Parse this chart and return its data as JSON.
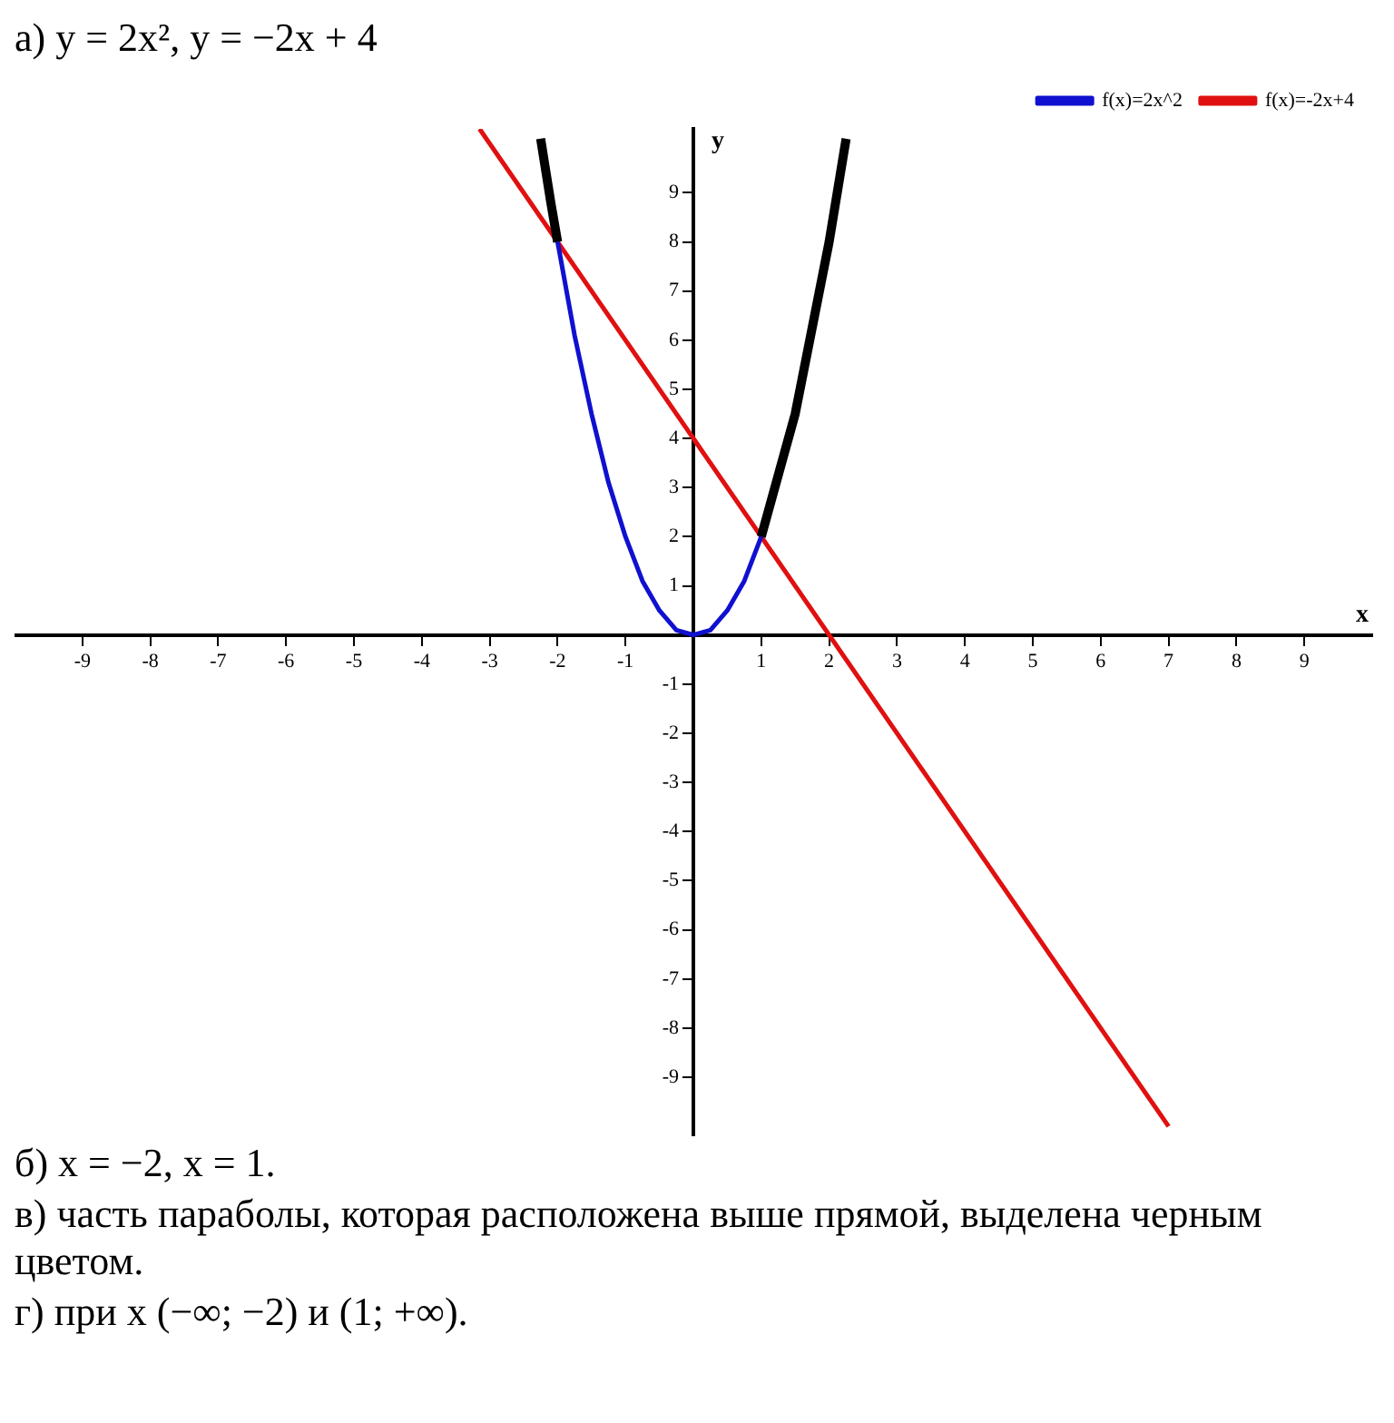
{
  "chart_data": {
    "type": "line",
    "title": "а) y = 2x², y = −2x + 4",
    "xlabel": "x",
    "ylabel": "y",
    "xlim": [
      -10,
      10
    ],
    "ylim": [
      -10.2,
      10.3
    ],
    "xticks": [
      -9,
      -8,
      -7,
      -6,
      -5,
      -4,
      -3,
      -2,
      -1,
      1,
      2,
      3,
      4,
      5,
      6,
      7,
      8,
      9
    ],
    "yticks": [
      -9,
      -8,
      -7,
      -6,
      -5,
      -4,
      -3,
      -2,
      -1,
      1,
      2,
      3,
      4,
      5,
      6,
      7,
      8,
      9
    ],
    "grid": false,
    "legend": "top right",
    "marker": "none",
    "series": [
      {
        "name": "f(x)=2x^2",
        "color": "#1010d0",
        "x": [
          -2,
          -1.75,
          -1.5,
          -1.25,
          -1,
          -0.75,
          -0.5,
          -0.25,
          0,
          0.25,
          0.5,
          0.75,
          1
        ],
        "values": [
          8,
          6.1,
          4.5,
          3.1,
          2,
          1.1,
          0.5,
          0.1,
          0,
          0.1,
          0.5,
          1.1,
          2
        ]
      },
      {
        "color": "#000000",
        "x": [
          -2.25,
          -2.1,
          -2,
          -1.5,
          1,
          1.5,
          2,
          2.25
        ],
        "values": [
          10.1,
          8.8,
          8,
          null,
          2,
          4.5,
          8,
          10.1
        ]
      },
      {
        "name": "f(x)=-2x+4",
        "color": "#e01010",
        "x": [
          -3.15,
          7
        ],
        "values": [
          10.3,
          -10
        ]
      }
    ],
    "annotations": [
      "б) x = −2, x = 1.",
      "в) часть параболы, которая расположена выше прямой, выделена черным цветом.",
      "г) при x (−∞; −2) и (1; +∞)."
    ]
  }
}
